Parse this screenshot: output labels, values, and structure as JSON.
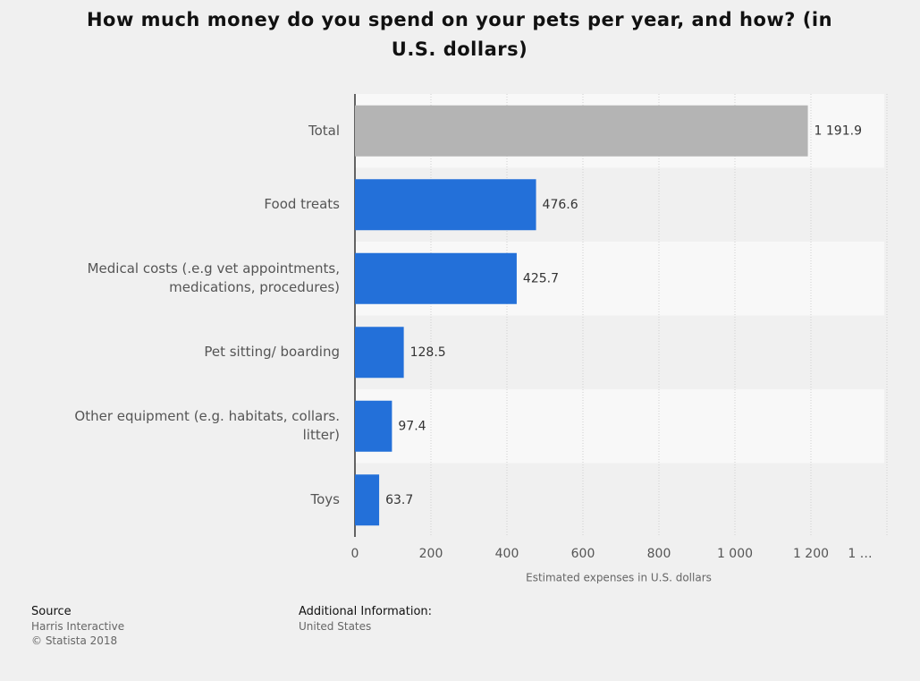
{
  "chart_data": {
    "type": "bar",
    "orientation": "horizontal",
    "title": "How much money do you spend on your pets per year, and how? (in U.S. dollars)",
    "categories": [
      "Total",
      "Food treats",
      "Medical costs (.e.g vet appointments, medications, procedures)",
      "Pet sitting/ boarding",
      "Other equipment (e.g. habitats, collars. litter)",
      "Toys"
    ],
    "values": [
      1191.9,
      476.6,
      425.7,
      128.5,
      97.4,
      63.7
    ],
    "value_labels": [
      "1 191.9",
      "476.6",
      "425.7",
      "128.5",
      "97.4",
      "63.7"
    ],
    "colors": [
      "#b4b4b4",
      "#2370d9",
      "#2370d9",
      "#2370d9",
      "#2370d9",
      "#2370d9"
    ],
    "xlabel": "Estimated expenses in U.S. dollars",
    "xlim": [
      0,
      1400
    ],
    "xticks": [
      0,
      200,
      400,
      600,
      800,
      {
        "value": 1000,
        "label": "1 000"
      },
      {
        "value": 1200,
        "label": "1 200"
      },
      {
        "value": 1400,
        "label": "1 …"
      }
    ],
    "grid": true
  },
  "footer": {
    "source_title": "Source",
    "source_lines": [
      "Harris Interactive",
      "© Statista 2018"
    ],
    "info_title": "Additional Information:",
    "info_lines": [
      "United States"
    ]
  }
}
